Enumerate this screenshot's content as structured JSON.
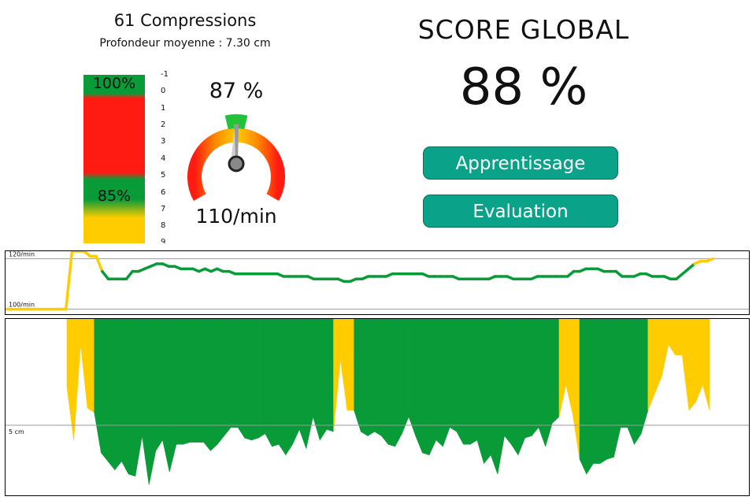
{
  "summary": {
    "compressions": "61 Compressions",
    "average_depth": "Profondeur moyenne : 7.30 cm"
  },
  "depth_bar": {
    "top_label": "100%",
    "bottom_label": "85%",
    "ticks": [
      "-1",
      "0",
      "1",
      "2",
      "3",
      "4",
      "5",
      "6",
      "7",
      "8",
      "9"
    ]
  },
  "rate_gauge": {
    "percent": "87 %",
    "rate": "110/min"
  },
  "score": {
    "title": "SCORE GLOBAL",
    "value": "88 %"
  },
  "buttons": {
    "learn": "Apprentissage",
    "eval": "Evaluation"
  },
  "colors": {
    "green": "#0a9b39",
    "yellow": "#ffcc00",
    "red": "#ff1a12",
    "button": "#0aa38a"
  },
  "chart_data": [
    {
      "type": "line",
      "ylabel_ticks": [
        "120/min",
        "100/min"
      ],
      "ylim": [
        98,
        123
      ],
      "grid": "horizontal lines at 120/min and 100/min",
      "values": [
        100,
        100,
        100,
        100,
        100,
        100,
        100,
        100,
        100,
        100,
        100,
        123,
        123,
        123,
        121,
        121,
        115,
        112,
        112,
        112,
        112,
        115,
        115,
        116,
        117,
        118,
        118,
        117,
        117,
        116,
        116,
        116,
        115,
        116,
        115,
        116,
        115,
        115,
        114,
        114,
        114,
        114,
        114,
        114,
        114,
        114,
        113,
        113,
        113,
        113,
        113,
        112,
        112,
        112,
        112,
        112,
        111,
        111,
        112,
        112,
        113,
        113,
        113,
        113,
        114,
        114,
        114,
        114,
        114,
        114,
        113,
        113,
        113,
        113,
        113,
        112,
        112,
        112,
        112,
        112,
        112,
        113,
        113,
        113,
        112,
        112,
        112,
        112,
        113,
        113,
        113,
        113,
        113,
        113,
        115,
        115,
        116,
        116,
        116,
        115,
        115,
        115,
        113,
        113,
        113,
        114,
        114,
        113,
        113,
        113,
        112,
        112,
        114,
        116,
        118,
        119,
        119,
        120
      ],
      "series_colors": "green inside target band, yellow outside"
    },
    {
      "type": "area",
      "ylabel_ticks": [
        "5 cm"
      ],
      "ylim": [
        0,
        8.3
      ],
      "values": [
        0,
        0,
        0,
        0,
        0,
        0,
        0,
        0,
        0,
        0,
        0,
        3.2,
        5.7,
        1.2,
        4.2,
        4.4,
        6.3,
        6.7,
        7.1,
        6.7,
        7.3,
        7.4,
        5.5,
        7.8,
        6.2,
        5.7,
        7.2,
        5.9,
        5.9,
        5.8,
        5.8,
        5.8,
        6.2,
        5.9,
        5.5,
        5.1,
        5.1,
        5.6,
        5.7,
        5.6,
        5.4,
        6.0,
        5.9,
        6.4,
        5.9,
        5.2,
        6.1,
        4.6,
        5.7,
        5.2,
        5.3,
        1.9,
        4.3,
        4.3,
        5.3,
        5.5,
        5.3,
        5.5,
        5.9,
        6.0,
        5.4,
        4.6,
        5.5,
        6.3,
        6.4,
        5.7,
        6.0,
        5.1,
        5.3,
        5.9,
        5.9,
        5.7,
        6.8,
        6.4,
        7.3,
        5.5,
        5.9,
        6.4,
        5.6,
        5.5,
        5.1,
        6.0,
        4.9,
        4.6,
        3.1,
        4.5,
        6.6,
        7.3,
        6.8,
        6.8,
        6.6,
        6.5,
        5.1,
        5.1,
        5.9,
        5.4,
        4.3,
        3.5,
        2.7,
        1.2,
        1.7,
        1.7,
        4.3,
        3.9,
        3.1,
        4.3
      ],
      "series_colors": "green within depth target, yellow outside"
    }
  ]
}
